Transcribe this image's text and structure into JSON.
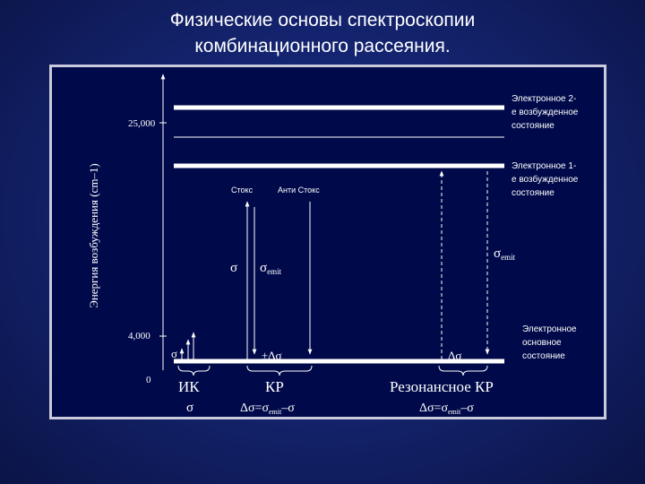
{
  "title": {
    "line1": "Физические основы спектроскопии",
    "line2": "комбинационного рассеяния."
  },
  "diagram": {
    "y_axis_label": "Энергия возбуждения (cm–1)",
    "ticks": [
      {
        "value": "25,000"
      },
      {
        "value": "4,000"
      },
      {
        "value": "0"
      }
    ],
    "levels": {
      "excited2": {
        "line1": "Электронное 2-",
        "line2": "е возбужденное",
        "line3": "состояние"
      },
      "excited1": {
        "line1": "Электронное 1-",
        "line2": "е возбужденное",
        "line3": "состояние"
      },
      "ground": {
        "line1": "Электронное",
        "line2": "основное",
        "line3": "состояние"
      }
    },
    "stokes_label": "Стокс",
    "antistokes_label": "Анти Стокс",
    "sigma": "σ",
    "sigma_emit": "σ",
    "emit_sub": "emit",
    "plus_minus_dsigma": "±Δσ",
    "dsigma": "Δσ",
    "sections": {
      "ir": {
        "name": "ИК",
        "formula": "σ"
      },
      "raman": {
        "name": "КР",
        "formula_left": "Δσ=σ",
        "formula_sub": "emit",
        "formula_right": "–σ"
      },
      "resonance": {
        "name": "Резонансное КР",
        "formula_left": "Δσ=σ",
        "formula_sub": "emit",
        "formula_right": "–σ"
      }
    }
  }
}
